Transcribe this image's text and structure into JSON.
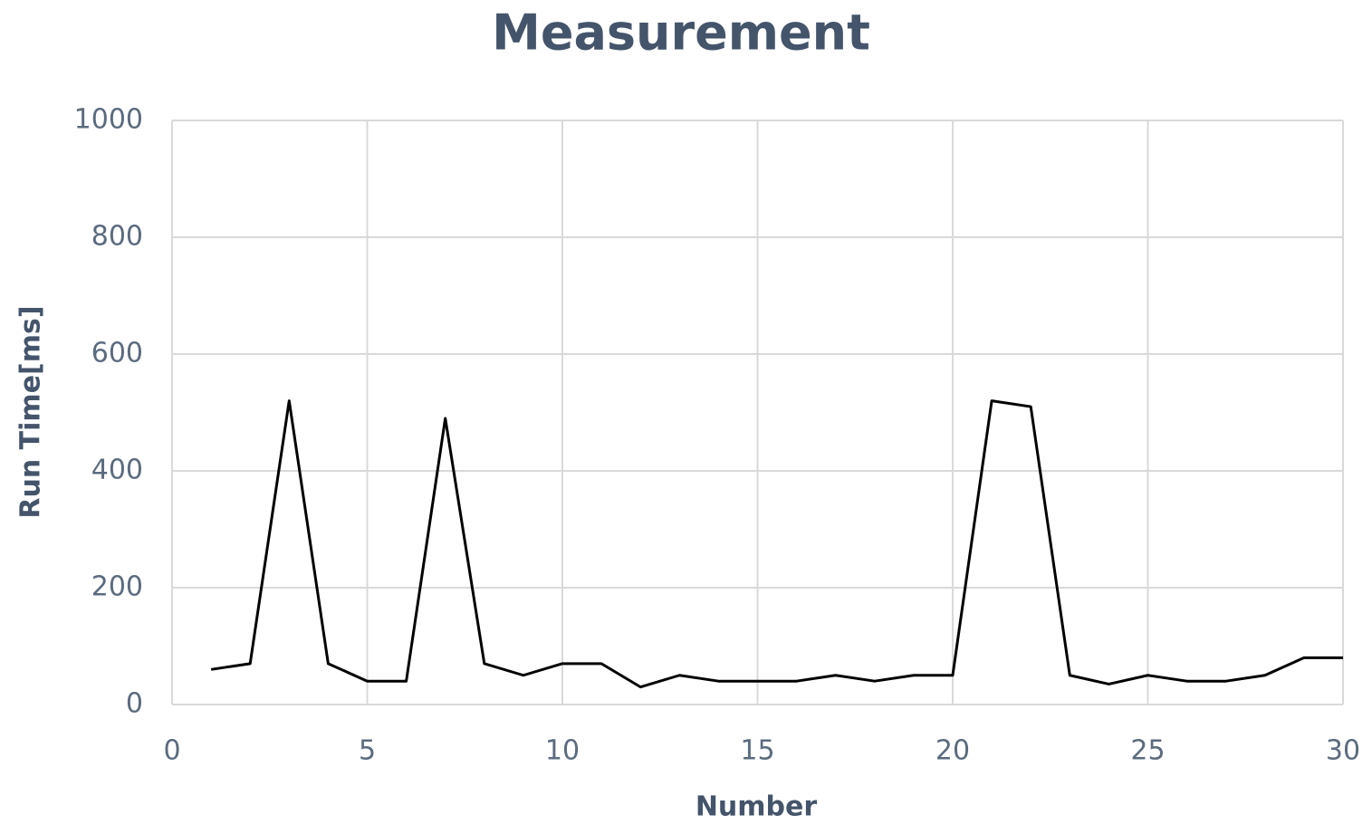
{
  "chart_data": {
    "type": "line",
    "title": "Measurement",
    "x_label": "Number",
    "y_label": "Run Time[ms]",
    "x": [
      1,
      2,
      3,
      4,
      5,
      6,
      7,
      8,
      9,
      10,
      11,
      12,
      13,
      14,
      15,
      16,
      17,
      18,
      19,
      20,
      21,
      22,
      23,
      24,
      25,
      26,
      27,
      28,
      29,
      30
    ],
    "series": [
      {
        "name": "Run Time",
        "color": "#000000",
        "values": [
          60,
          70,
          520,
          70,
          40,
          40,
          490,
          70,
          50,
          70,
          70,
          30,
          50,
          40,
          40,
          40,
          50,
          40,
          50,
          50,
          520,
          510,
          50,
          35,
          50,
          40,
          40,
          50,
          80,
          80
        ]
      }
    ],
    "xlim": [
      0,
      30
    ],
    "xticks": [
      0,
      5,
      10,
      15,
      20,
      25,
      30
    ],
    "ylim": [
      0,
      1000
    ],
    "yticks": [
      0,
      200,
      400,
      600,
      800,
      1000
    ],
    "grid": true
  }
}
